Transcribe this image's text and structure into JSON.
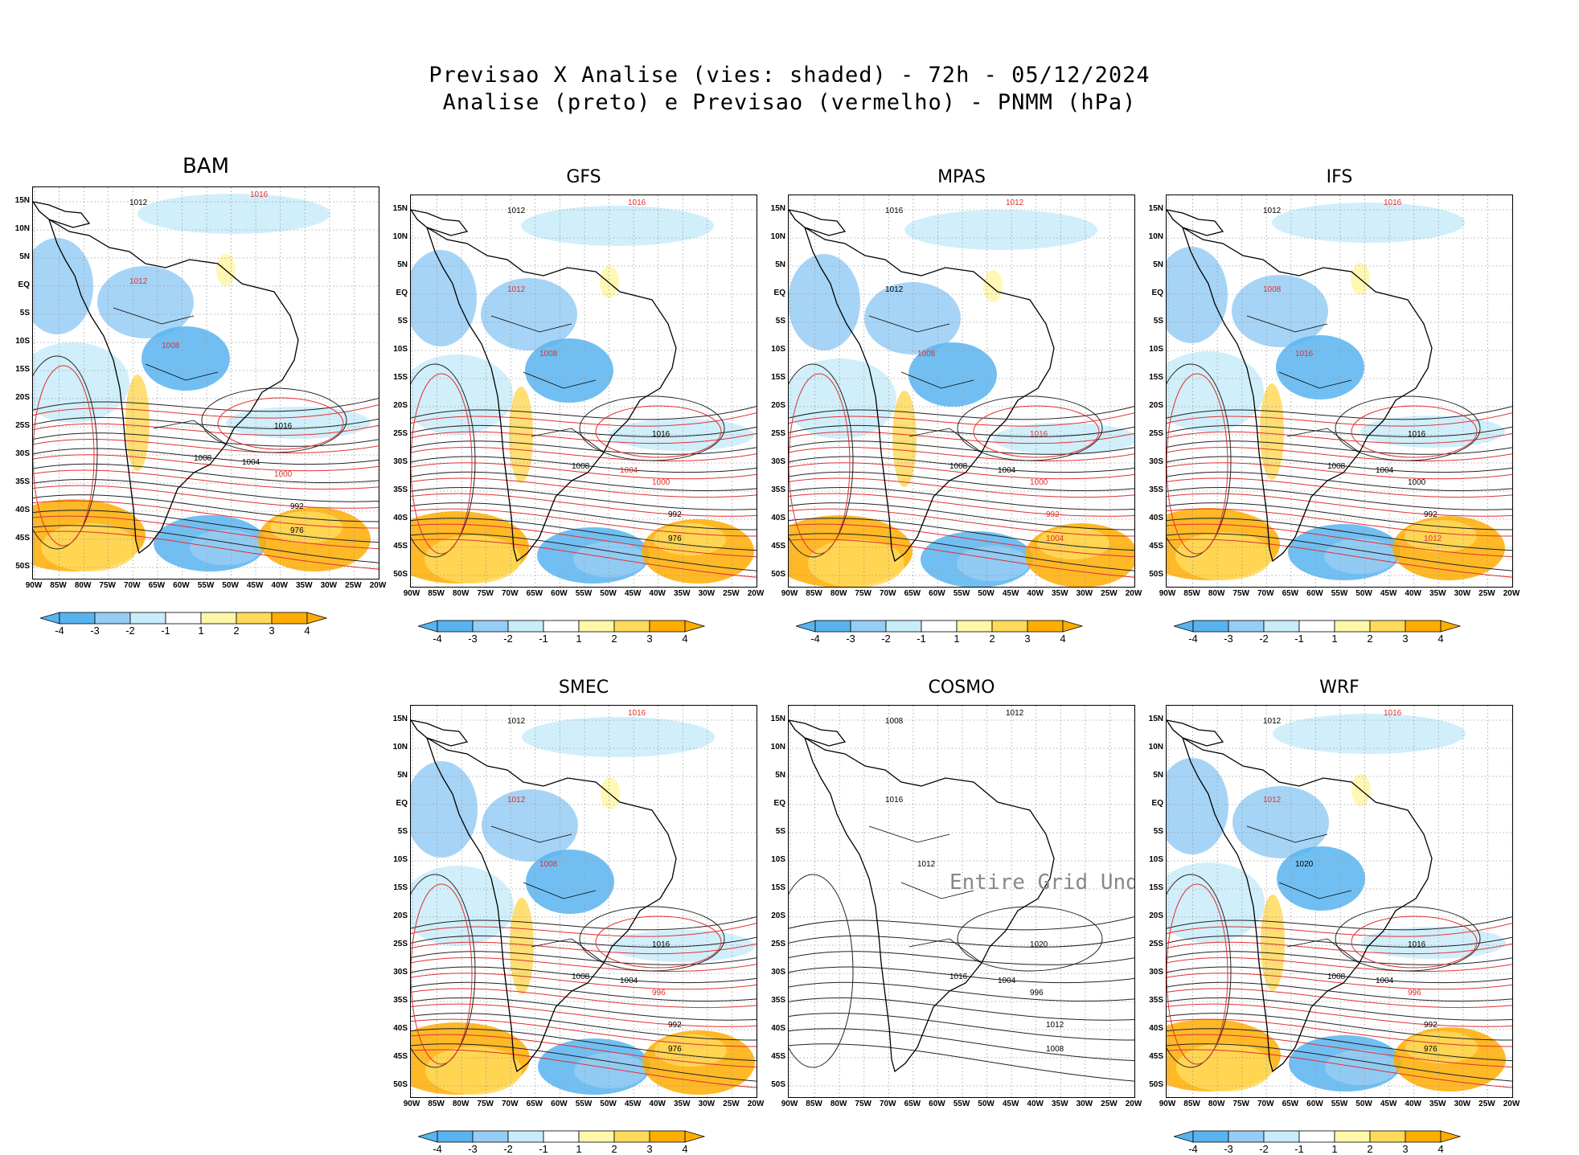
{
  "title_line1": "Previsao X Analise (vies: shaded) - 72h - 05/12/2024",
  "title_line2": "Analise (preto) e Previsao (vermelho) - PNMM (hPa)",
  "lat_labels": [
    "15N",
    "10N",
    "5N",
    "EQ",
    "5S",
    "10S",
    "15S",
    "20S",
    "25S",
    "30S",
    "35S",
    "40S",
    "45S",
    "50S"
  ],
  "lon_labels": [
    "90W",
    "85W",
    "80W",
    "75W",
    "70W",
    "65W",
    "60W",
    "55W",
    "50W",
    "45W",
    "40W",
    "35W",
    "30W",
    "25W",
    "20W"
  ],
  "colorbar": {
    "ticks": [
      "-4",
      "-3",
      "-2",
      "-1",
      "1",
      "2",
      "3",
      "4"
    ],
    "colors": [
      "#58b4f0",
      "#96cdf5",
      "#c8ecfa",
      "#ffffff",
      "#fff7a8",
      "#ffd95a",
      "#ffad00"
    ]
  },
  "panels": [
    {
      "name": "BAM",
      "has_bias": true,
      "label_style": "bold",
      "isobars": [
        {
          "v": "1016",
          "c": "r"
        },
        {
          "v": "1012",
          "c": "k"
        },
        {
          "v": "1008",
          "c": "k"
        },
        {
          "v": "1016",
          "c": "k"
        },
        {
          "v": "1004",
          "c": "k"
        },
        {
          "v": "1000",
          "c": "r"
        },
        {
          "v": "992",
          "c": "k"
        },
        {
          "v": "976",
          "c": "k"
        },
        {
          "v": "1012",
          "c": "r"
        },
        {
          "v": "1008",
          "c": "r"
        }
      ]
    },
    {
      "name": "GFS",
      "has_bias": true,
      "label_style": "normal",
      "isobars": [
        {
          "v": "1016",
          "c": "r"
        },
        {
          "v": "1012",
          "c": "k"
        },
        {
          "v": "1008",
          "c": "k"
        },
        {
          "v": "1016",
          "c": "k"
        },
        {
          "v": "1004",
          "c": "r"
        },
        {
          "v": "1000",
          "c": "r"
        },
        {
          "v": "992",
          "c": "k"
        },
        {
          "v": "976",
          "c": "k"
        },
        {
          "v": "1012",
          "c": "r"
        },
        {
          "v": "1008",
          "c": "r"
        }
      ]
    },
    {
      "name": "MPAS",
      "has_bias": true,
      "label_style": "normal",
      "isobars": [
        {
          "v": "1012",
          "c": "r"
        },
        {
          "v": "1016",
          "c": "k"
        },
        {
          "v": "1008",
          "c": "k"
        },
        {
          "v": "1016",
          "c": "r"
        },
        {
          "v": "1004",
          "c": "k"
        },
        {
          "v": "1000",
          "c": "r"
        },
        {
          "v": "992",
          "c": "r"
        },
        {
          "v": "1004",
          "c": "r"
        },
        {
          "v": "1012",
          "c": "k"
        },
        {
          "v": "1008",
          "c": "r"
        }
      ]
    },
    {
      "name": "IFS",
      "has_bias": true,
      "label_style": "normal",
      "isobars": [
        {
          "v": "1016",
          "c": "r"
        },
        {
          "v": "1012",
          "c": "k"
        },
        {
          "v": "1008",
          "c": "k"
        },
        {
          "v": "1016",
          "c": "k"
        },
        {
          "v": "1004",
          "c": "k"
        },
        {
          "v": "1000",
          "c": "k"
        },
        {
          "v": "992",
          "c": "k"
        },
        {
          "v": "1012",
          "c": "r"
        },
        {
          "v": "1008",
          "c": "r"
        },
        {
          "v": "1016",
          "c": "r"
        }
      ]
    },
    {
      "name": "SMEC",
      "has_bias": true,
      "label_style": "normal",
      "isobars": [
        {
          "v": "1016",
          "c": "r"
        },
        {
          "v": "1012",
          "c": "k"
        },
        {
          "v": "1008",
          "c": "k"
        },
        {
          "v": "1016",
          "c": "k"
        },
        {
          "v": "1004",
          "c": "k"
        },
        {
          "v": "996",
          "c": "r"
        },
        {
          "v": "992",
          "c": "k"
        },
        {
          "v": "976",
          "c": "k"
        },
        {
          "v": "1012",
          "c": "r"
        },
        {
          "v": "1008",
          "c": "r"
        }
      ]
    },
    {
      "name": "COSMO",
      "has_bias": false,
      "label_style": "normal",
      "undefined_text": "Entire Grid Undef",
      "isobars": [
        {
          "v": "1012",
          "c": "k"
        },
        {
          "v": "1008",
          "c": "k"
        },
        {
          "v": "1016",
          "c": "k"
        },
        {
          "v": "1020",
          "c": "k"
        },
        {
          "v": "1004",
          "c": "k"
        },
        {
          "v": "996",
          "c": "k"
        },
        {
          "v": "1012",
          "c": "k"
        },
        {
          "v": "1008",
          "c": "k"
        },
        {
          "v": "1016",
          "c": "k"
        },
        {
          "v": "1012",
          "c": "k"
        }
      ]
    },
    {
      "name": "WRF",
      "has_bias": true,
      "label_style": "normal",
      "isobars": [
        {
          "v": "1016",
          "c": "r"
        },
        {
          "v": "1012",
          "c": "k"
        },
        {
          "v": "1008",
          "c": "k"
        },
        {
          "v": "1016",
          "c": "k"
        },
        {
          "v": "1004",
          "c": "k"
        },
        {
          "v": "996",
          "c": "r"
        },
        {
          "v": "992",
          "c": "k"
        },
        {
          "v": "976",
          "c": "k"
        },
        {
          "v": "1012",
          "c": "r"
        },
        {
          "v": "1020",
          "c": "k"
        }
      ]
    }
  ]
}
